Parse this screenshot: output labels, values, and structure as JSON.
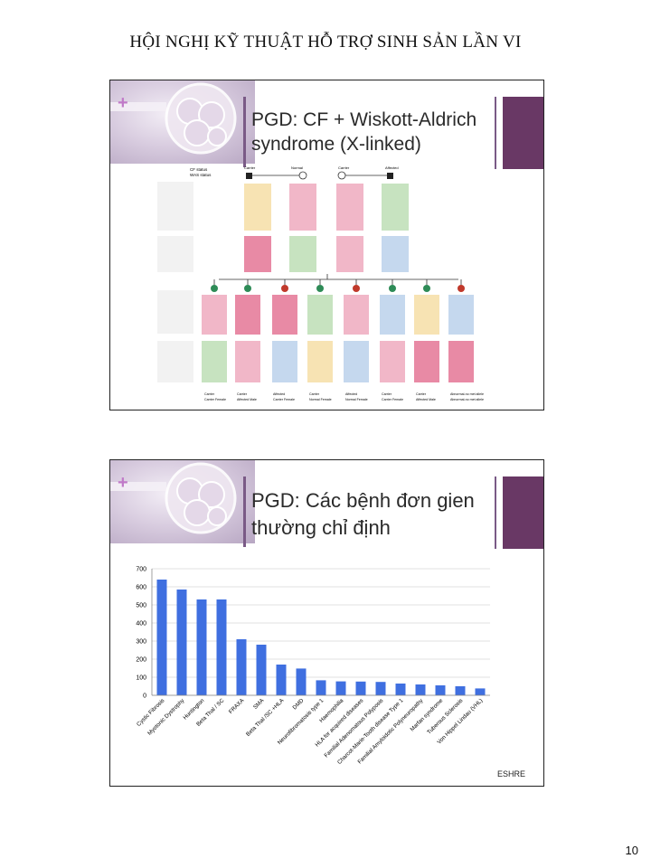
{
  "page": {
    "header": "HỘI NGHỊ KỸ THUẬT HỖ TRỢ SINH SẢN LẦN VI",
    "page_number": "10"
  },
  "slide1": {
    "plus": "+",
    "title": "PGD: CF + Wiskott-Aldrich syndrome (X-linked)",
    "pedigree": {
      "status_header_1": "CF status",
      "status_header_2": "WAS status",
      "parents": [
        {
          "cf": "Carrier",
          "was": "Normal"
        },
        {
          "cf": "Normal",
          "was": "Carrier"
        },
        {
          "cf": "Carrier",
          "was": "Carrier"
        },
        {
          "cf": "Affected",
          "was": "Normal"
        }
      ],
      "embryos_cf": [
        "Carrier",
        "Carrier",
        "Affected",
        "Carrier",
        "Affected",
        "Carrier",
        "Carrier",
        "Abnormal-no met allele"
      ],
      "embryos_was": [
        "Carrier Female",
        "Affected Male",
        "Carrier Female",
        "Normal Female",
        "Normal Female",
        "Carrier Female",
        "Affected Male",
        "Abnormal-no met allele"
      ]
    }
  },
  "slide2": {
    "plus": "+",
    "title": "PGD: Các bệnh đơn gien thường chỉ định",
    "source": "ESHRE"
  },
  "chart_data": {
    "type": "bar",
    "categories": [
      "Cystic Fibrosis",
      "Myotonic Dystrophy",
      "Huntington",
      "Beta Thal / SC",
      "FRAXA",
      "SMA",
      "Beta Thal /SC +HLA",
      "DMD",
      "Neurofibromatosis type 1",
      "Haemophilia",
      "HLA for acquired diseases",
      "Familial Adenomatous Polyposis",
      "Charcot-Marie-Tooth disease Type 1",
      "Familial Amyloidotic Polyneuropathy",
      "Marfan syndrome",
      "Tuberous Sclerosis",
      "Von Hippel Lindau (VHL)"
    ],
    "values": [
      640,
      585,
      530,
      530,
      310,
      280,
      170,
      148,
      83,
      77,
      76,
      74,
      65,
      60,
      55,
      50,
      38
    ],
    "ylim": [
      0,
      700
    ],
    "yticks": [
      "0",
      "100",
      "200",
      "300",
      "400",
      "500",
      "600",
      "700"
    ],
    "grid": true,
    "bar_color": "#3f6fe0",
    "xlabel": "",
    "ylabel": ""
  }
}
